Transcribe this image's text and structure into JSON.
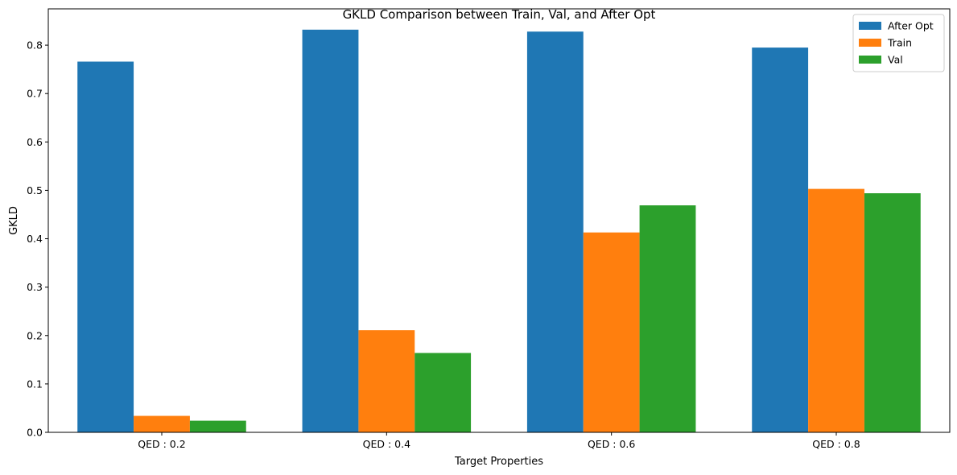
{
  "chart_data": {
    "type": "bar",
    "title": "GKLD Comparison between Train, Val, and After Opt",
    "xlabel": "Target Properties",
    "ylabel": "GKLD",
    "categories": [
      "QED : 0.2",
      "QED : 0.4",
      "QED : 0.6",
      "QED : 0.8"
    ],
    "series": [
      {
        "name": "After Opt",
        "color": "#1f77b4",
        "values": [
          0.766,
          0.832,
          0.828,
          0.795
        ]
      },
      {
        "name": "Train",
        "color": "#ff7f0e",
        "values": [
          0.034,
          0.211,
          0.413,
          0.503
        ]
      },
      {
        "name": "Val",
        "color": "#2ca02c",
        "values": [
          0.024,
          0.164,
          0.469,
          0.494
        ]
      }
    ],
    "ylim": [
      0,
      0.875
    ],
    "yticks": [
      "0.0",
      "0.1",
      "0.2",
      "0.3",
      "0.4",
      "0.5",
      "0.6",
      "0.7",
      "0.8"
    ],
    "grid": false,
    "legend_position": "top-right"
  }
}
